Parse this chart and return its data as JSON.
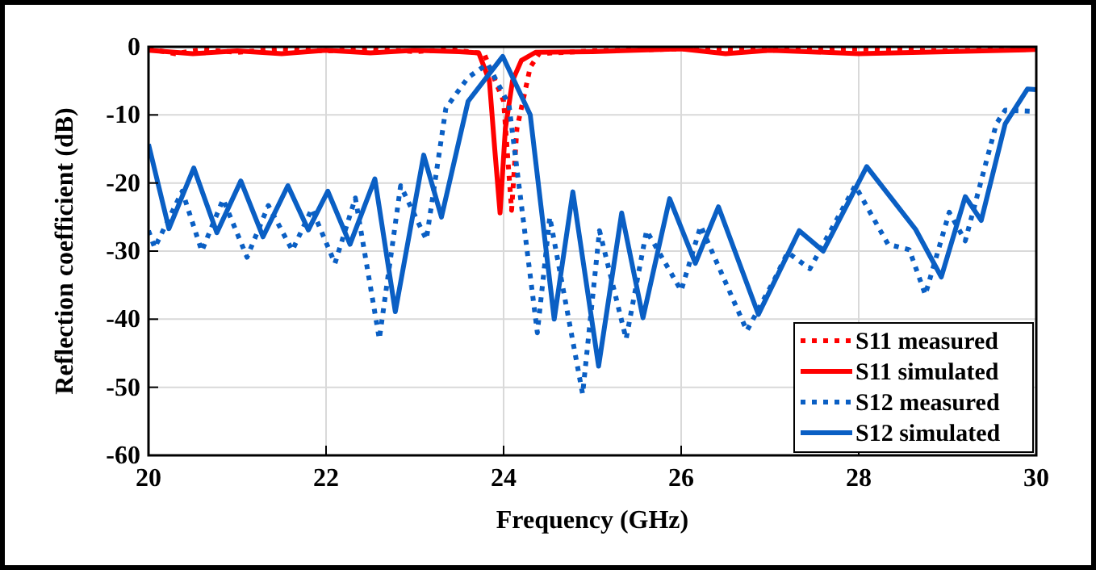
{
  "chart_data": {
    "type": "line",
    "xlabel": "Frequency (GHz)",
    "ylabel": "Reflection coefficient (dB)",
    "xlim": [
      20,
      30
    ],
    "ylim": [
      -60,
      0
    ],
    "xticks": [
      20,
      22,
      24,
      26,
      28,
      30
    ],
    "yticks": [
      -60,
      -50,
      -40,
      -30,
      -20,
      -10,
      0
    ],
    "grid": true,
    "legend": "bottom right",
    "marker": "none",
    "series": [
      {
        "name": "S11 measured",
        "color": "#ff0000",
        "line_style": "dotted",
        "x": [
          20,
          20.3,
          20.6,
          21,
          21.5,
          22,
          22.5,
          23,
          23.4,
          23.78,
          24.0,
          24.09,
          24.15,
          24.3,
          24.4,
          25,
          26,
          27,
          28,
          29,
          30
        ],
        "values": [
          -0.3,
          -1,
          -0.4,
          -0.8,
          -0.3,
          -0.6,
          -0.3,
          -0.7,
          -0.4,
          -1,
          -8,
          -24,
          -12,
          -3,
          -1,
          -0.6,
          -0.3,
          -0.5,
          -0.3,
          -0.6,
          -0.3
        ]
      },
      {
        "name": "S11 simulated",
        "color": "#ff0000",
        "line_style": "solid",
        "x": [
          20,
          20.5,
          21,
          21.5,
          22,
          22.5,
          23,
          23.5,
          23.72,
          23.84,
          23.9,
          23.96,
          24.02,
          24.1,
          24.2,
          24.36,
          25,
          26,
          26.5,
          27,
          28,
          29,
          30
        ],
        "values": [
          -0.5,
          -1,
          -0.6,
          -1,
          -0.5,
          -0.9,
          -0.5,
          -0.7,
          -0.9,
          -5,
          -15,
          -24.4,
          -12,
          -5,
          -2,
          -0.8,
          -0.7,
          -0.3,
          -1,
          -0.5,
          -1,
          -0.7,
          -0.4
        ]
      },
      {
        "name": "S12 measured",
        "color": "#0a5fc4",
        "line_style": "dotted",
        "x": [
          20,
          20.07,
          20.38,
          20.6,
          20.84,
          21.11,
          21.35,
          21.62,
          21.84,
          22.1,
          22.33,
          22.6,
          22.84,
          23.13,
          23.35,
          23.6,
          23.82,
          24.06,
          24.38,
          24.52,
          24.89,
          25.08,
          25.38,
          25.61,
          26.0,
          26.22,
          26.74,
          27.05,
          27.2,
          27.45,
          27.96,
          28.33,
          28.57,
          28.75,
          29.02,
          29.2,
          29.55,
          29.65,
          30
        ],
        "values": [
          -27,
          -29.5,
          -21.2,
          -30,
          -22.4,
          -30.9,
          -23.3,
          -29.9,
          -23.8,
          -31.8,
          -22.2,
          -42.9,
          -20.4,
          -28.3,
          -9,
          -4.5,
          -2.5,
          -8.5,
          -42,
          -25,
          -51,
          -27,
          -42.9,
          -27,
          -35.8,
          -26.3,
          -41.7,
          -34.2,
          -30.2,
          -32.6,
          -20.4,
          -29,
          -29.8,
          -36.4,
          -24.3,
          -28.5,
          -11.3,
          -9.3,
          -9.5
        ]
      },
      {
        "name": "S12 simulated",
        "color": "#0a5fc4",
        "line_style": "solid",
        "x": [
          20,
          20.23,
          20.51,
          20.77,
          21.04,
          21.29,
          21.57,
          21.8,
          22.02,
          22.27,
          22.55,
          22.78,
          23.1,
          23.3,
          23.6,
          23.99,
          24.3,
          24.57,
          24.78,
          25.07,
          25.33,
          25.57,
          25.87,
          26.16,
          26.42,
          26.87,
          27.33,
          27.6,
          28.09,
          28.64,
          28.93,
          29.2,
          29.38,
          29.65,
          29.9,
          30
        ],
        "values": [
          -14.3,
          -26.7,
          -17.8,
          -27.3,
          -19.7,
          -27.9,
          -20.4,
          -26.9,
          -21.2,
          -29,
          -19.4,
          -38.9,
          -15.9,
          -25,
          -8,
          -1.4,
          -10,
          -40,
          -21.3,
          -46.9,
          -24.4,
          -39.8,
          -22.3,
          -31.8,
          -23.5,
          -39.3,
          -27,
          -30,
          -17.6,
          -26.8,
          -33.8,
          -22,
          -25.5,
          -11.3,
          -6.2,
          -6.3
        ]
      }
    ]
  }
}
